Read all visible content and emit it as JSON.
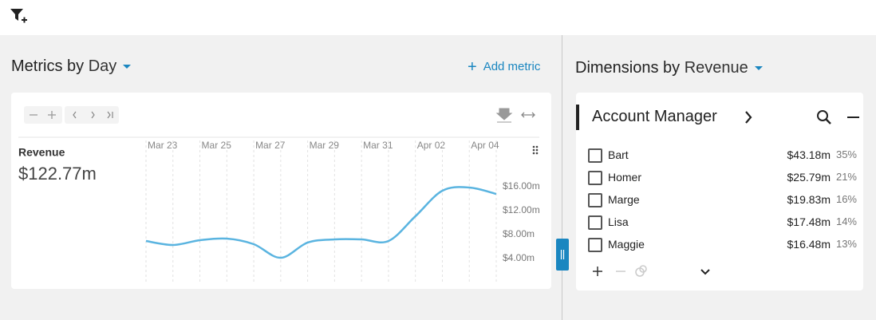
{
  "metrics": {
    "title": "Metrics by",
    "group_by": "Day",
    "add_metric": "Add metric",
    "chart_data": {
      "type": "line",
      "metric_name": "Revenue",
      "total": "$122.77m",
      "categories": [
        "Mar 23",
        null,
        "Mar 25",
        null,
        "Mar 27",
        null,
        "Mar 29",
        null,
        "Mar 31",
        null,
        "Apr 02",
        null,
        "Apr 04",
        null
      ],
      "series": [
        {
          "name": "Revenue",
          "color": "#5ab4e0",
          "values": [
            6.93,
            6.27,
            7.07,
            7.33,
            6.4,
            4.13,
            6.67,
            7.2,
            7.2,
            6.93,
            11.07,
            15.33,
            15.87,
            14.8
          ]
        }
      ],
      "ylim": [
        0,
        24
      ],
      "yticks": [
        {
          "value": 4,
          "label": "$4.00m"
        },
        {
          "value": 8,
          "label": "$8.00m"
        },
        {
          "value": 12,
          "label": "$12.00m"
        },
        {
          "value": 16,
          "label": "$16.00m"
        }
      ],
      "grid": true
    }
  },
  "dimensions": {
    "title": "Dimensions by",
    "sort_by": "Revenue",
    "panel": {
      "title": "Account Manager",
      "rows": [
        {
          "name": "Bart",
          "value": "$43.18m",
          "share": "35%"
        },
        {
          "name": "Homer",
          "value": "$25.79m",
          "share": "21%"
        },
        {
          "name": "Marge",
          "value": "$19.83m",
          "share": "16%"
        },
        {
          "name": "Lisa",
          "value": "$17.48m",
          "share": "14%"
        },
        {
          "name": "Maggie",
          "value": "$16.48m",
          "share": "13%"
        }
      ]
    }
  }
}
